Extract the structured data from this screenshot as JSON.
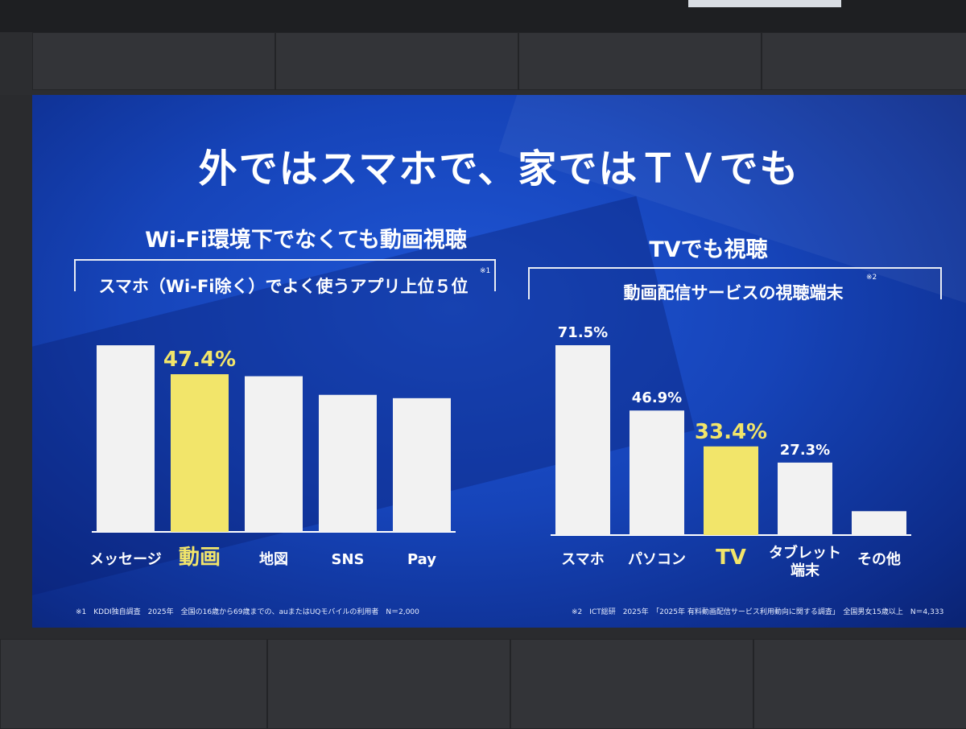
{
  "slide": {
    "title": "外ではスマホで、家ではＴＶでも",
    "left_heading": "Wi-Fi環境下でなくても動画視聴",
    "left_box_title": "スマホ（Wi-Fi除く）でよく使うアプリ上位５位",
    "left_note_mark": "※1",
    "right_heading": "TVでも視聴",
    "right_box_title": "動画配信サービスの視聴端末",
    "right_note_mark": "※2",
    "footnote_1": "※1　KDDI独自調査　2025年　全国の16歳から69歳までの、auまたはUQモバイルの利用者　N＝2,000",
    "footnote_2": "※2　ICT総研　2025年　「2025年 有料動画配信サービス利用動向に関する調査」　全国男女15歳以上　N＝4,333"
  },
  "colors": {
    "bar": "#f2f2f2",
    "highlight": "#f2e56a",
    "label": "#ffffff",
    "axis": "#ffffff"
  },
  "chart_data": [
    {
      "type": "bar",
      "title": "スマホ（Wi-Fi除く）でよく使うアプリ上位５位",
      "categories": [
        "メッセージ",
        "動画",
        "地図",
        "SNS",
        "Pay"
      ],
      "values": [
        56.1,
        47.4,
        46.8,
        41.2,
        40.2
      ],
      "data_labels": [
        "",
        "47.4%",
        "",
        "",
        ""
      ],
      "highlight_index": 1,
      "ylim": [
        0,
        60
      ]
    },
    {
      "type": "bar",
      "title": "動画配信サービスの視聴端末",
      "categories": [
        "スマホ",
        "パソコン",
        "TV",
        "タブレット\n端末",
        "その他"
      ],
      "values": [
        71.5,
        46.9,
        33.4,
        27.3,
        9.0
      ],
      "data_labels": [
        "71.5%",
        "46.9%",
        "33.4%",
        "27.3%",
        ""
      ],
      "highlight_index": 2,
      "ylim": [
        0,
        80
      ]
    }
  ]
}
